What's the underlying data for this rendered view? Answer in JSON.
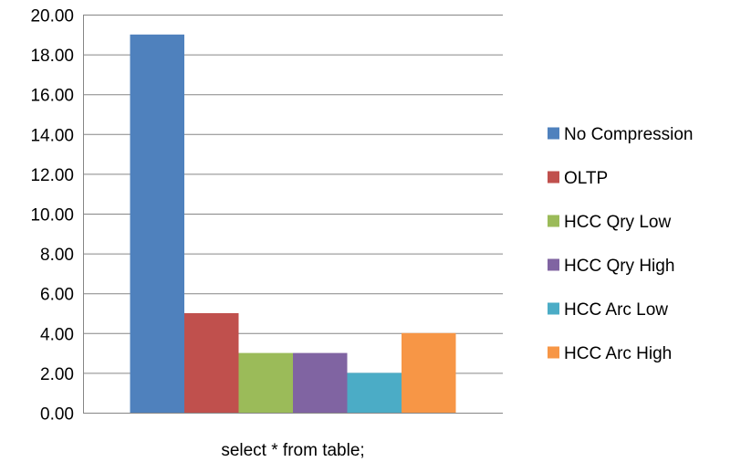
{
  "chart_data": {
    "type": "bar",
    "title": "",
    "xlabel": "",
    "ylabel": "",
    "categories": [
      "select * from table;"
    ],
    "ylim": [
      0,
      20
    ],
    "ytick_step": 2,
    "ytick_labels": [
      "0.00",
      "2.00",
      "4.00",
      "6.00",
      "8.00",
      "10.00",
      "12.00",
      "14.00",
      "16.00",
      "18.00",
      "20.00"
    ],
    "grid": true,
    "legend_position": "right",
    "series": [
      {
        "name": "No Compression",
        "values": [
          19
        ],
        "color": "#4F81BD"
      },
      {
        "name": "OLTP",
        "values": [
          5
        ],
        "color": "#C0504D"
      },
      {
        "name": "HCC Qry Low",
        "values": [
          3
        ],
        "color": "#9BBB59"
      },
      {
        "name": "HCC Qry High",
        "values": [
          3
        ],
        "color": "#8064A2"
      },
      {
        "name": "HCC Arc Low",
        "values": [
          2
        ],
        "color": "#4BACC6"
      },
      {
        "name": "HCC Arc High",
        "values": [
          4
        ],
        "color": "#F79646"
      }
    ]
  }
}
